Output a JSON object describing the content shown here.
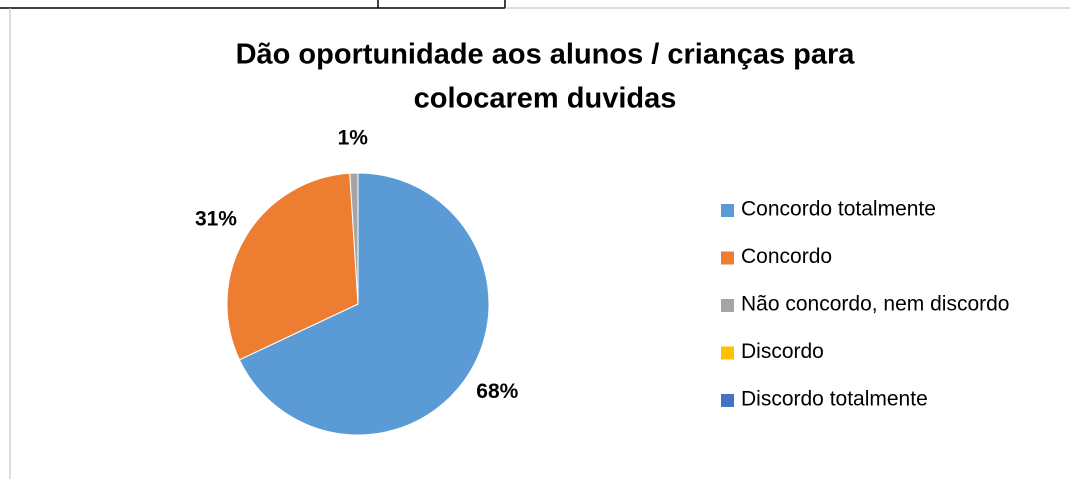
{
  "chart_data": {
    "type": "pie",
    "title": [
      "Dão oportunidade aos alunos / crianças para",
      "colocarem duvidas"
    ],
    "categories": [
      "Concordo totalmente",
      "Concordo",
      "Não concordo, nem discordo",
      "Discordo",
      "Discordo totalmente"
    ],
    "values": [
      68,
      31,
      1,
      0,
      0
    ],
    "value_labels": [
      "68%",
      "31%",
      "1%",
      null,
      null
    ],
    "colors": [
      "#5b9bd5",
      "#ed7d31",
      "#a5a5a5",
      "#ffc000",
      "#4472c4"
    ],
    "legend": "right"
  }
}
